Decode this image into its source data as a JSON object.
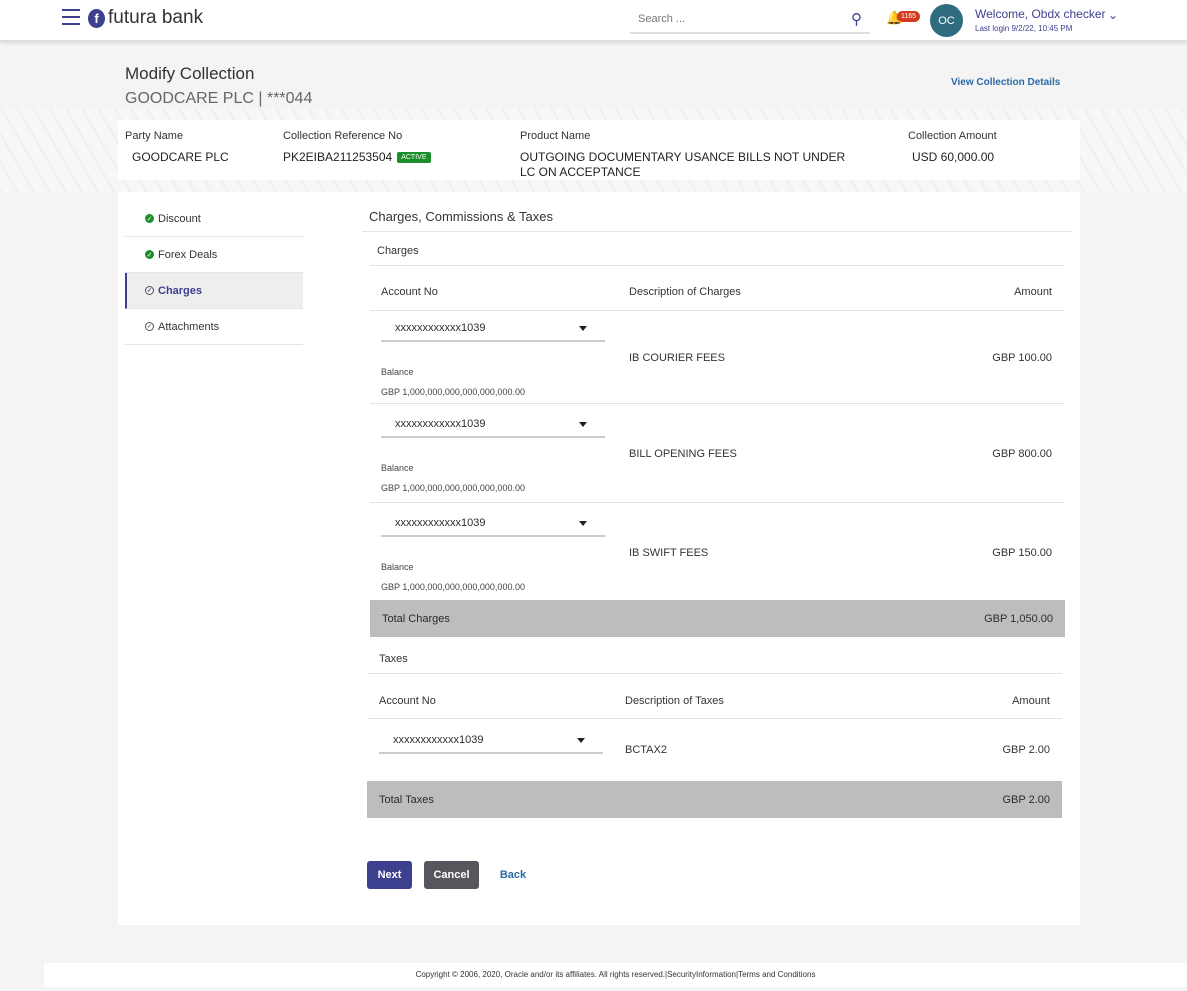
{
  "header": {
    "brand": "futura bank",
    "search_placeholder": "Search ...",
    "notification_count": "1165",
    "avatar_initials": "OC",
    "welcome": "Welcome, Obdx checker",
    "last_login": "Last login 9/2/22, 10:45 PM"
  },
  "page": {
    "title": "Modify Collection",
    "subtitle": "GOODCARE PLC | ***044",
    "view_details": "View Collection Details"
  },
  "summary": {
    "party_label": "Party Name",
    "party": "GOODCARE PLC",
    "ref_label": "Collection Reference No",
    "ref": "PK2EIBA211253504",
    "status": "ACTIVE",
    "product_label": "Product Name",
    "product_line1": "OUTGOING DOCUMENTARY USANCE BILLS NOT UNDER",
    "product_line2": "LC ON ACCEPTANCE",
    "amount_label": "Collection Amount",
    "amount": "USD 60,000.00"
  },
  "nav": [
    {
      "label": "Discount",
      "state": "done"
    },
    {
      "label": "Forex Deals",
      "state": "done"
    },
    {
      "label": "Charges",
      "state": "current"
    },
    {
      "label": "Attachments",
      "state": "pending"
    }
  ],
  "section_title": "Charges, Commissions & Taxes",
  "charges": {
    "label": "Charges",
    "col_account": "Account No",
    "col_desc": "Description of Charges",
    "col_amount": "Amount",
    "balance_label": "Balance",
    "rows": [
      {
        "account": "xxxxxxxxxxxx1039",
        "balance": "GBP 1,000,000,000,000,000,000.00",
        "desc": "IB COURIER FEES",
        "amount": "GBP 100.00"
      },
      {
        "account": "xxxxxxxxxxxx1039",
        "balance": "GBP 1,000,000,000,000,000,000.00",
        "desc": "BILL OPENING FEES",
        "amount": "GBP 800.00"
      },
      {
        "account": "xxxxxxxxxxxx1039",
        "balance": "GBP 1,000,000,000,000,000,000.00",
        "desc": "IB SWIFT FEES",
        "amount": "GBP 150.00"
      }
    ],
    "total_label": "Total Charges",
    "total": "GBP 1,050.00"
  },
  "taxes": {
    "label": "Taxes",
    "col_account": "Account No",
    "col_desc": "Description of Taxes",
    "col_amount": "Amount",
    "rows": [
      {
        "account": "xxxxxxxxxxxx1039",
        "desc": "BCTAX2",
        "amount": "GBP 2.00"
      }
    ],
    "total_label": "Total Taxes",
    "total": "GBP 2.00"
  },
  "buttons": {
    "next": "Next",
    "cancel": "Cancel",
    "back": "Back"
  },
  "colors": {
    "primary": "#3d3f8f",
    "cancel": "#55575c",
    "active": "#1c8f2c",
    "badge": "#d23b1f"
  },
  "footer": "Copyright © 2006, 2020, Oracle and/or its affiliates. All rights reserved.|SecurityInformation|Terms and Conditions"
}
